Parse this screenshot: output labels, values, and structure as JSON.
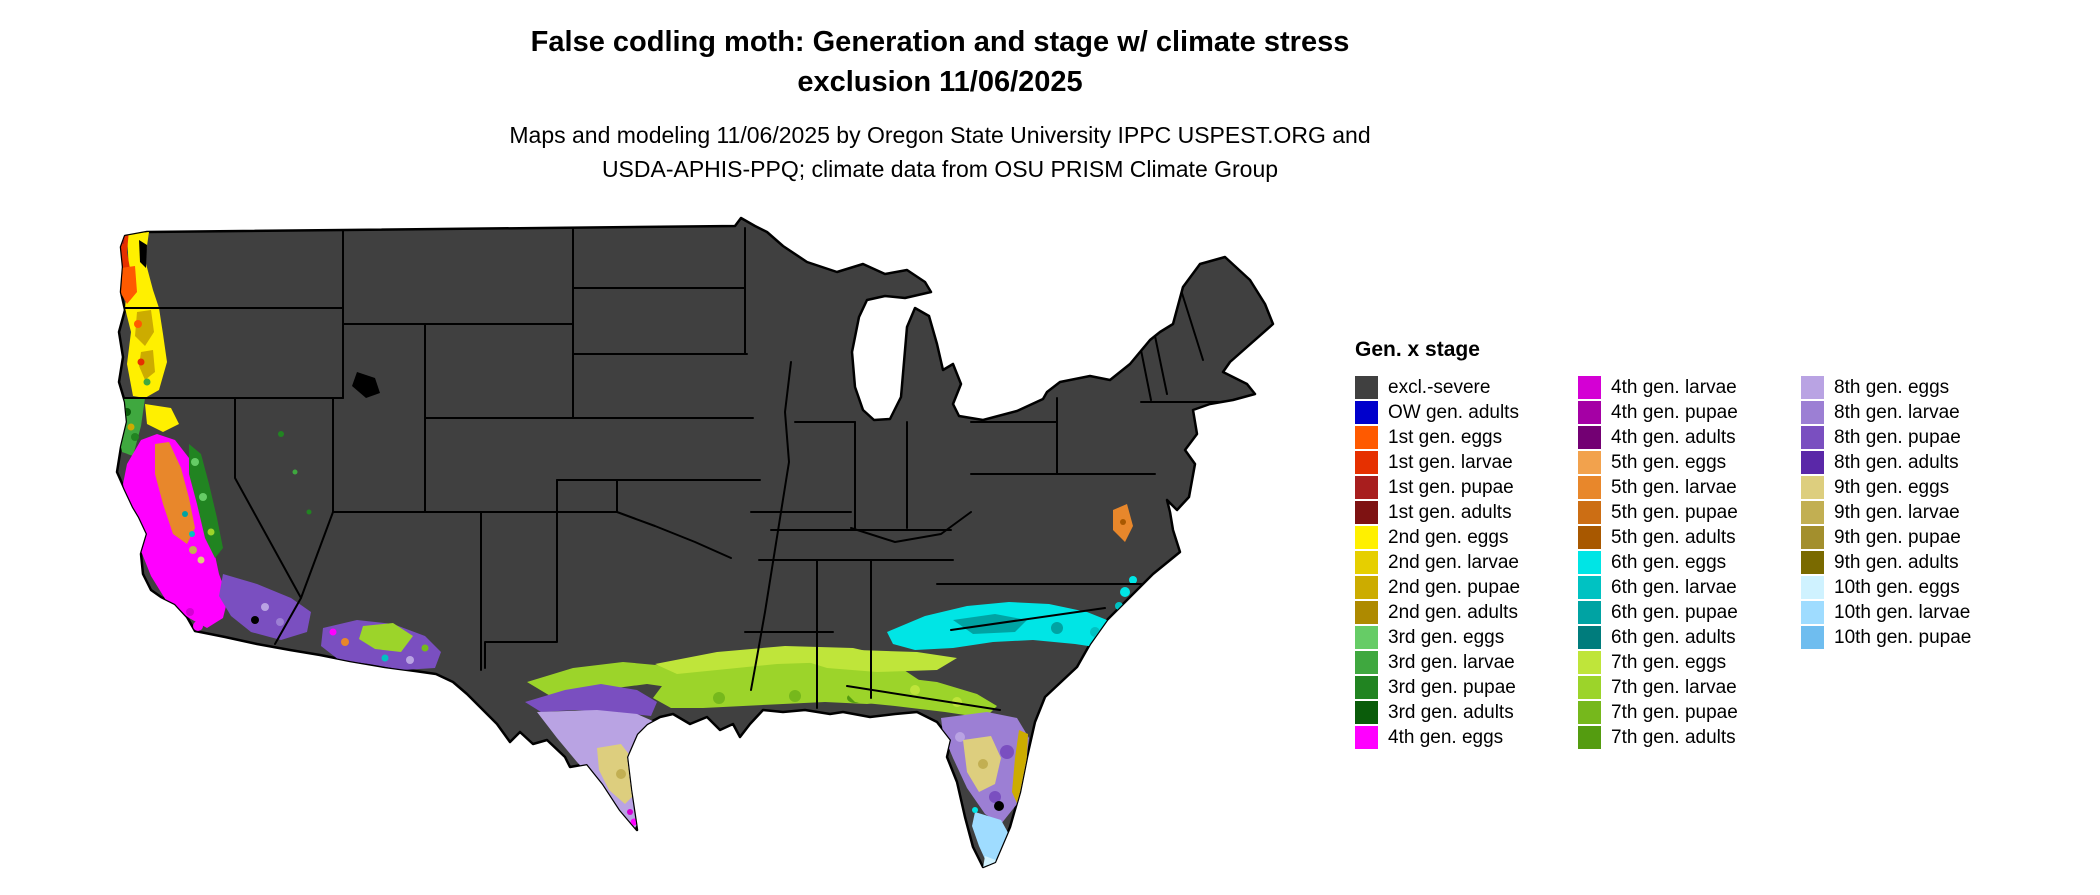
{
  "title": {
    "line1": "False codling moth: Generation and stage w/ climate stress",
    "line2": "exclusion 11/06/2025"
  },
  "subtitle": {
    "line1": "Maps and modeling 11/06/2025 by Oregon State University IPPC USPEST.ORG and",
    "line2": "USDA-APHIS-PPQ; climate data from OSU PRISM Climate Group"
  },
  "legend": {
    "title": "Gen. x stage",
    "columns": [
      [
        {
          "label": "excl.-severe",
          "color": "#404040"
        },
        {
          "label": "OW gen. adults",
          "color": "#0000CC"
        },
        {
          "label": "1st gen. eggs",
          "color": "#FF5A00"
        },
        {
          "label": "1st gen. larvae",
          "color": "#E63000"
        },
        {
          "label": "1st gen. pupae",
          "color": "#A81E1E"
        },
        {
          "label": "1st gen. adults",
          "color": "#7E1212"
        },
        {
          "label": "2nd gen. eggs",
          "color": "#FFF000"
        },
        {
          "label": "2nd gen. larvae",
          "color": "#E6CF00"
        },
        {
          "label": "2nd gen. pupae",
          "color": "#CCAC00"
        },
        {
          "label": "2nd gen. adults",
          "color": "#AE8A00"
        },
        {
          "label": "3rd gen. eggs",
          "color": "#66CC66"
        },
        {
          "label": "3rd gen. larvae",
          "color": "#3FA83F"
        },
        {
          "label": "3rd gen. pupae",
          "color": "#218421"
        },
        {
          "label": "3rd gen. adults",
          "color": "#0A5C0A"
        },
        {
          "label": "4th gen. eggs",
          "color": "#FF00FF"
        }
      ],
      [
        {
          "label": "4th gen. larvae",
          "color": "#D400D4"
        },
        {
          "label": "4th gen. pupae",
          "color": "#A500A5"
        },
        {
          "label": "4th gen. adults",
          "color": "#730073"
        },
        {
          "label": "5th gen. eggs",
          "color": "#F2A24D"
        },
        {
          "label": "5th gen. larvae",
          "color": "#E8872B"
        },
        {
          "label": "5th gen. pupae",
          "color": "#CC6E14"
        },
        {
          "label": "5th gen. adults",
          "color": "#A85800"
        },
        {
          "label": "6th gen. eggs",
          "color": "#00E5E5"
        },
        {
          "label": "6th gen. larvae",
          "color": "#00C2C2"
        },
        {
          "label": "6th gen. pupae",
          "color": "#00A3A3"
        },
        {
          "label": "6th gen. adults",
          "color": "#007C7C"
        },
        {
          "label": "7th gen. eggs",
          "color": "#BFE53A"
        },
        {
          "label": "7th gen. larvae",
          "color": "#9CD42A"
        },
        {
          "label": "7th gen. pupae",
          "color": "#76B81C"
        },
        {
          "label": "7th gen. adults",
          "color": "#549C10"
        }
      ],
      [
        {
          "label": "8th gen. eggs",
          "color": "#B9A3E3"
        },
        {
          "label": "8th gen. larvae",
          "color": "#9C7FD4"
        },
        {
          "label": "8th gen. pupae",
          "color": "#7A4FC0"
        },
        {
          "label": "8th gen. adults",
          "color": "#5A28A8"
        },
        {
          "label": "9th gen. eggs",
          "color": "#DDCE7E"
        },
        {
          "label": "9th gen. larvae",
          "color": "#C2AF52"
        },
        {
          "label": "9th gen. pupae",
          "color": "#A38F2D"
        },
        {
          "label": "9th gen. adults",
          "color": "#7A6A00"
        },
        {
          "label": "10th gen. eggs",
          "color": "#CFF2FF"
        },
        {
          "label": "10th gen. larvae",
          "color": "#9FDCFF"
        },
        {
          "label": "10th gen. pupae",
          "color": "#6FBDEF"
        }
      ]
    ]
  },
  "map": {
    "land_base_color": "#404040",
    "state_border_color": "#000000",
    "water_color": "#FFFFFF"
  }
}
